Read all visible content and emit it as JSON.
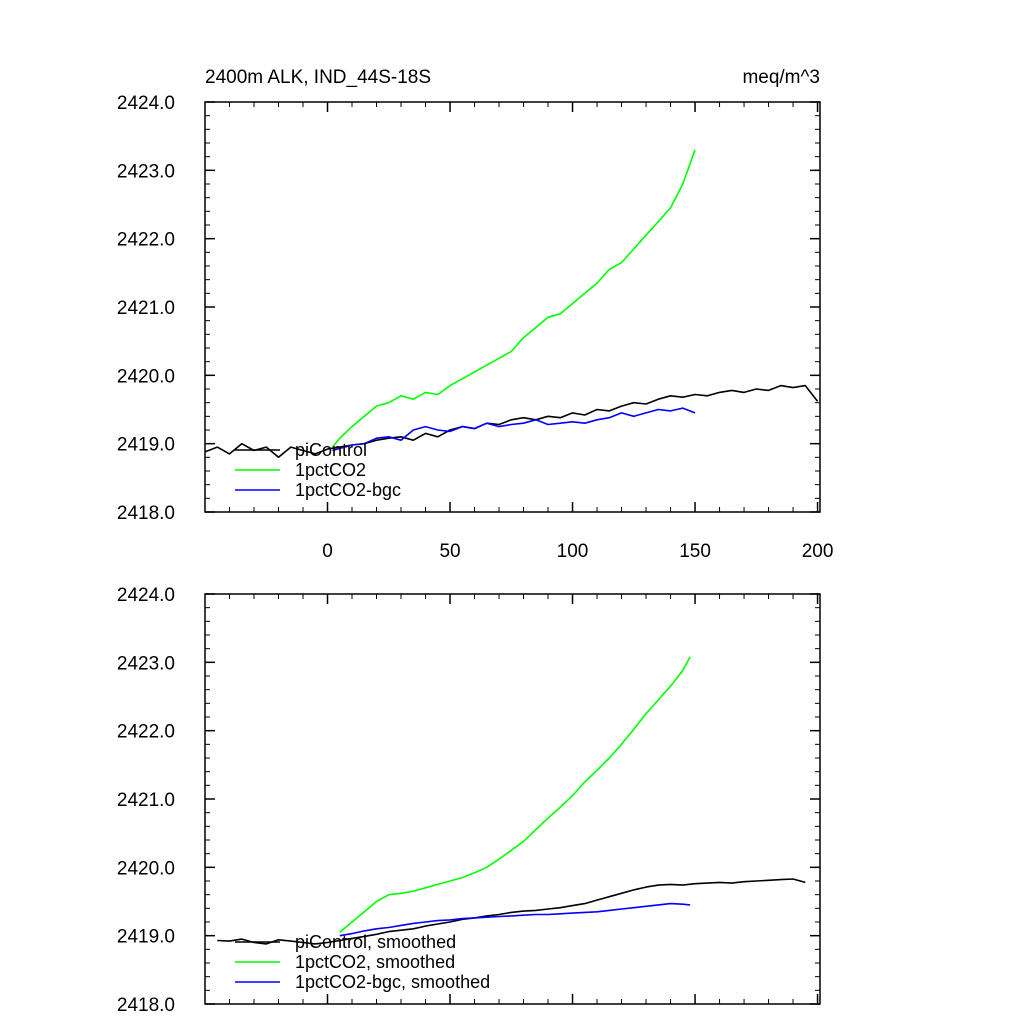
{
  "chart_data": [
    {
      "type": "line",
      "title_left": "2400m ALK, IND_44S-18S",
      "title_right": "meq/m^3",
      "xlim": [
        -50,
        201
      ],
      "ylim": [
        2418.0,
        2424.0
      ],
      "xticks": [
        0,
        50,
        100,
        150,
        200
      ],
      "xtick_labels": [
        "0",
        "50",
        "100",
        "150",
        "200"
      ],
      "yticks": [
        2418.0,
        2419.0,
        2420.0,
        2421.0,
        2422.0,
        2423.0,
        2424.0
      ],
      "ytick_labels": [
        "2418.0",
        "2419.0",
        "2420.0",
        "2421.0",
        "2422.0",
        "2423.0",
        "2424.0"
      ],
      "legend": [
        "piControl",
        "1pctCO2",
        "1pctCO2-bgc"
      ],
      "series": [
        {
          "name": "piControl",
          "color": "#000000",
          "x": [
            -50,
            -45,
            -40,
            -35,
            -30,
            -25,
            -20,
            -15,
            -10,
            -5,
            0,
            5,
            10,
            15,
            20,
            25,
            30,
            35,
            40,
            45,
            50,
            55,
            60,
            65,
            70,
            75,
            80,
            85,
            90,
            95,
            100,
            105,
            110,
            115,
            120,
            125,
            130,
            135,
            140,
            145,
            150,
            155,
            160,
            165,
            170,
            175,
            180,
            185,
            190,
            195,
            200
          ],
          "y": [
            2418.88,
            2418.95,
            2418.85,
            2419.0,
            2418.9,
            2418.95,
            2418.8,
            2418.95,
            2418.9,
            2418.85,
            2418.92,
            2418.95,
            2418.98,
            2419.0,
            2419.05,
            2419.08,
            2419.1,
            2419.05,
            2419.15,
            2419.1,
            2419.2,
            2419.25,
            2419.22,
            2419.3,
            2419.28,
            2419.35,
            2419.38,
            2419.35,
            2419.4,
            2419.38,
            2419.45,
            2419.42,
            2419.5,
            2419.48,
            2419.55,
            2419.6,
            2419.58,
            2419.65,
            2419.7,
            2419.68,
            2419.72,
            2419.7,
            2419.75,
            2419.78,
            2419.75,
            2419.8,
            2419.78,
            2419.85,
            2419.82,
            2419.85,
            2419.62
          ]
        },
        {
          "name": "1pctCO2",
          "color": "#00ff00",
          "x": [
            2,
            5,
            10,
            15,
            20,
            25,
            30,
            35,
            40,
            45,
            50,
            55,
            60,
            65,
            70,
            75,
            80,
            85,
            90,
            95,
            100,
            105,
            110,
            115,
            120,
            125,
            130,
            135,
            140,
            145,
            150
          ],
          "y": [
            2418.95,
            2419.08,
            2419.25,
            2419.4,
            2419.55,
            2419.6,
            2419.7,
            2419.65,
            2419.75,
            2419.72,
            2419.85,
            2419.95,
            2420.05,
            2420.15,
            2420.25,
            2420.35,
            2420.55,
            2420.7,
            2420.85,
            2420.9,
            2421.05,
            2421.2,
            2421.35,
            2421.55,
            2421.65,
            2421.85,
            2422.05,
            2422.25,
            2422.45,
            2422.8,
            2423.3
          ]
        },
        {
          "name": "1pctCO2-bgc",
          "color": "#0000ff",
          "x": [
            2,
            10,
            15,
            20,
            25,
            30,
            35,
            40,
            45,
            50,
            55,
            60,
            65,
            70,
            75,
            80,
            85,
            90,
            95,
            100,
            105,
            110,
            115,
            120,
            125,
            130,
            135,
            140,
            145,
            150
          ],
          "y": [
            2418.9,
            2418.98,
            2419.0,
            2419.08,
            2419.1,
            2419.05,
            2419.2,
            2419.25,
            2419.2,
            2419.18,
            2419.25,
            2419.22,
            2419.3,
            2419.25,
            2419.28,
            2419.3,
            2419.35,
            2419.28,
            2419.3,
            2419.32,
            2419.3,
            2419.35,
            2419.38,
            2419.45,
            2419.4,
            2419.45,
            2419.5,
            2419.48,
            2419.52,
            2419.45
          ]
        }
      ]
    },
    {
      "type": "line",
      "xlim": [
        -50,
        201
      ],
      "ylim": [
        2418.0,
        2424.0
      ],
      "xticks": [
        0,
        50,
        100,
        150,
        200
      ],
      "yticks": [
        2418.0,
        2419.0,
        2420.0,
        2421.0,
        2422.0,
        2423.0,
        2424.0
      ],
      "ytick_labels": [
        "2418.0",
        "2419.0",
        "2420.0",
        "2421.0",
        "2422.0",
        "2423.0",
        "2424.0"
      ],
      "legend": [
        "piControl, smoothed",
        "1pctCO2, smoothed",
        "1pctCO2-bgc, smoothed"
      ],
      "series": [
        {
          "name": "piControl, smoothed",
          "color": "#000000",
          "x": [
            -45,
            -40,
            -35,
            -30,
            -25,
            -20,
            -15,
            -10,
            -5,
            0,
            5,
            10,
            15,
            20,
            25,
            30,
            35,
            40,
            45,
            50,
            55,
            60,
            65,
            70,
            75,
            80,
            85,
            90,
            95,
            100,
            105,
            110,
            115,
            120,
            125,
            130,
            135,
            140,
            145,
            150,
            155,
            160,
            165,
            170,
            175,
            180,
            185,
            190,
            195
          ],
          "y": [
            2418.93,
            2418.92,
            2418.95,
            2418.9,
            2418.88,
            2418.94,
            2418.92,
            2418.9,
            2418.88,
            2418.9,
            2418.93,
            2418.96,
            2418.99,
            2419.02,
            2419.06,
            2419.08,
            2419.1,
            2419.14,
            2419.17,
            2419.2,
            2419.24,
            2419.26,
            2419.29,
            2419.31,
            2419.34,
            2419.36,
            2419.37,
            2419.39,
            2419.41,
            2419.44,
            2419.47,
            2419.52,
            2419.57,
            2419.62,
            2419.67,
            2419.71,
            2419.74,
            2419.75,
            2419.74,
            2419.76,
            2419.77,
            2419.78,
            2419.77,
            2419.79,
            2419.8,
            2419.81,
            2419.82,
            2419.83,
            2419.78
          ]
        },
        {
          "name": "1pctCO2, smoothed",
          "color": "#00ff00",
          "x": [
            5,
            10,
            15,
            20,
            25,
            30,
            35,
            40,
            45,
            50,
            55,
            60,
            65,
            70,
            75,
            80,
            85,
            90,
            95,
            100,
            105,
            110,
            115,
            120,
            125,
            130,
            135,
            140,
            145,
            148
          ],
          "y": [
            2419.05,
            2419.2,
            2419.35,
            2419.5,
            2419.6,
            2419.62,
            2419.65,
            2419.7,
            2419.75,
            2419.8,
            2419.85,
            2419.92,
            2420.0,
            2420.12,
            2420.25,
            2420.38,
            2420.55,
            2420.72,
            2420.88,
            2421.05,
            2421.25,
            2421.42,
            2421.6,
            2421.8,
            2422.02,
            2422.25,
            2422.45,
            2422.65,
            2422.88,
            2423.08
          ]
        },
        {
          "name": "1pctCO2-bgc, smoothed",
          "color": "#0000ff",
          "x": [
            5,
            10,
            15,
            20,
            25,
            30,
            35,
            40,
            45,
            50,
            55,
            60,
            65,
            70,
            75,
            80,
            85,
            90,
            95,
            100,
            105,
            110,
            115,
            120,
            125,
            130,
            135,
            140,
            145,
            148
          ],
          "y": [
            2419.0,
            2419.03,
            2419.07,
            2419.1,
            2419.12,
            2419.15,
            2419.18,
            2419.2,
            2419.22,
            2419.23,
            2419.25,
            2419.26,
            2419.27,
            2419.28,
            2419.29,
            2419.3,
            2419.31,
            2419.31,
            2419.32,
            2419.33,
            2419.34,
            2419.35,
            2419.37,
            2419.39,
            2419.41,
            2419.43,
            2419.45,
            2419.47,
            2419.46,
            2419.45
          ]
        }
      ]
    }
  ]
}
